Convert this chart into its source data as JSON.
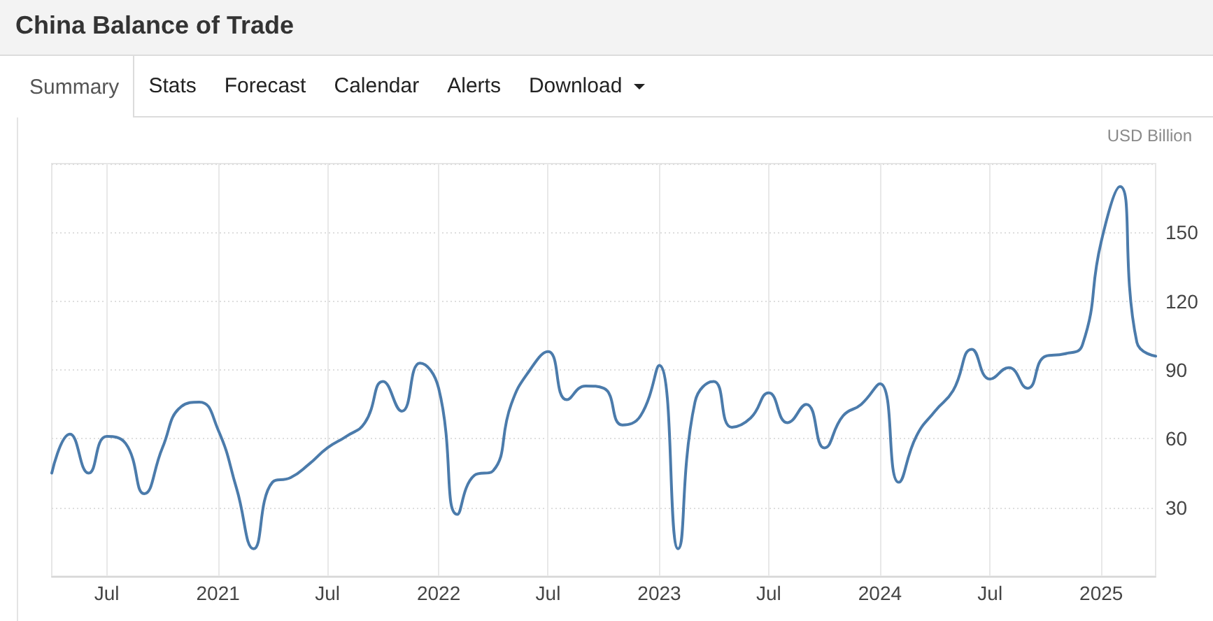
{
  "chart_data": {
    "type": "line",
    "title": "China Balance of Trade",
    "ylabel": "USD Billion",
    "annotations": [
      "Summary",
      "Stats",
      "Forecast",
      "Calendar",
      "Alerts",
      "Download"
    ],
    "x": [
      "2020-04",
      "2020-05",
      "2020-06",
      "2020-07",
      "2020-08",
      "2020-09",
      "2020-10",
      "2020-11",
      "2020-12",
      "2021-01",
      "2021-02",
      "2021-03",
      "2021-04",
      "2021-05",
      "2021-06",
      "2021-07",
      "2021-08",
      "2021-09",
      "2021-10",
      "2021-11",
      "2021-12",
      "2022-01",
      "2022-02",
      "2022-03",
      "2022-04",
      "2022-05",
      "2022-06",
      "2022-07",
      "2022-08",
      "2022-09",
      "2022-10",
      "2022-11",
      "2022-12",
      "2023-01",
      "2023-02",
      "2023-03",
      "2023-04",
      "2023-05",
      "2023-06",
      "2023-07",
      "2023-08",
      "2023-09",
      "2023-10",
      "2023-11",
      "2023-12",
      "2024-01",
      "2024-02",
      "2024-03",
      "2024-04",
      "2024-05",
      "2024-06",
      "2024-07",
      "2024-08",
      "2024-09",
      "2024-10",
      "2024-11",
      "2024-12",
      "2025-01",
      "2025-02",
      "2025-03",
      "2025-04"
    ],
    "values": [
      45,
      62,
      45,
      61,
      58,
      36,
      56,
      74,
      76,
      64,
      38,
      12,
      41,
      43,
      49,
      56,
      61,
      67,
      85,
      72,
      93,
      82,
      27,
      44,
      46,
      75,
      90,
      98,
      77,
      83,
      82,
      66,
      70,
      92,
      12,
      76,
      85,
      65,
      69,
      80,
      67,
      75,
      56,
      70,
      75,
      84,
      41,
      61,
      72,
      81,
      99,
      86,
      91,
      82,
      96,
      97,
      101,
      146,
      170,
      102,
      96
    ],
    "color": "#4b7bab",
    "marker": "none",
    "line_style": "solid",
    "xlim": [
      "2020-04",
      "2025-04"
    ],
    "xticks": [
      {
        "value": "2020-07",
        "label": "Jul"
      },
      "2021",
      {
        "value": "2021-07",
        "label": "Jul"
      },
      "2022",
      {
        "value": "2022-07",
        "label": "Jul"
      },
      "2023",
      {
        "value": "2023-07",
        "label": "Jul"
      },
      "2024",
      {
        "value": "2024-07",
        "label": "Jul"
      },
      "2025"
    ],
    "ylim": [
      0,
      180
    ],
    "yticks": [
      30,
      60,
      90,
      120,
      150,
      {
        "value": 180,
        "label": null
      }
    ],
    "grid": true
  }
}
